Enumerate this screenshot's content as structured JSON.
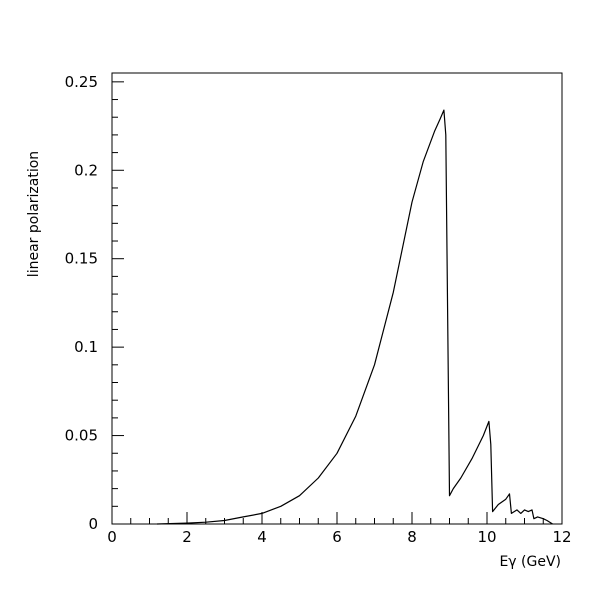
{
  "chart_data": {
    "type": "line",
    "title": "",
    "xlabel": "Eγ (GeV)",
    "ylabel": "linear polarization",
    "xlim": [
      0,
      12
    ],
    "ylim": [
      0,
      0.255
    ],
    "grid": false,
    "x_ticks": [
      0,
      2,
      4,
      6,
      8,
      10,
      12
    ],
    "x_tick_labels": [
      "0",
      "2",
      "4",
      "6",
      "8",
      "10",
      "12"
    ],
    "y_ticks": [
      0,
      0.05,
      0.1,
      0.15,
      0.2,
      0.25
    ],
    "y_tick_labels": [
      "0",
      "0.05",
      "0.1",
      "0.15",
      "0.2",
      "0.25"
    ],
    "series": [
      {
        "x": [
          1.2,
          2.0,
          2.5,
          3.0,
          3.5,
          4.0,
          4.5,
          5.0,
          5.5,
          6.0,
          6.5,
          7.0,
          7.5,
          8.0,
          8.3,
          8.6,
          8.75,
          8.85,
          8.9,
          9.0,
          9.1,
          9.3,
          9.6,
          9.9,
          10.05,
          10.1,
          10.15,
          10.3,
          10.5,
          10.6,
          10.65,
          10.8,
          10.9,
          11.0,
          11.1,
          11.2,
          11.25,
          11.35,
          11.5,
          11.6,
          11.75
        ],
        "y": [
          0.0,
          0.0005,
          0.001,
          0.002,
          0.004,
          0.006,
          0.01,
          0.016,
          0.026,
          0.04,
          0.061,
          0.09,
          0.131,
          0.182,
          0.205,
          0.222,
          0.229,
          0.234,
          0.22,
          0.016,
          0.02,
          0.026,
          0.037,
          0.05,
          0.058,
          0.045,
          0.007,
          0.011,
          0.014,
          0.017,
          0.006,
          0.008,
          0.006,
          0.008,
          0.007,
          0.008,
          0.003,
          0.004,
          0.003,
          0.002,
          0.0
        ]
      }
    ]
  }
}
